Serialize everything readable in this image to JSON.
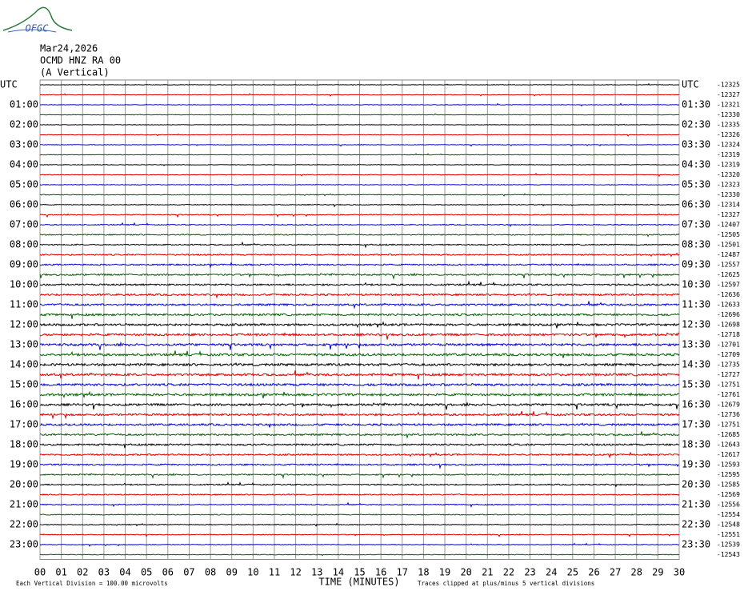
{
  "header": {
    "logo": "OFGC",
    "date": "Mar24,2026",
    "station": "OCMD HNZ RA 00",
    "component": "(A Vertical)"
  },
  "left_labels": [
    "UTC",
    "01:00",
    "02:00",
    "03:00",
    "04:00",
    "05:00",
    "06:00",
    "07:00",
    "08:00",
    "09:00",
    "10:00",
    "11:00",
    "12:00",
    "13:00",
    "14:00",
    "15:00",
    "16:00",
    "17:00",
    "18:00",
    "19:00",
    "20:00",
    "21:00",
    "22:00",
    "23:00"
  ],
  "right_labels": [
    "UTC",
    "01:30",
    "02:30",
    "03:30",
    "04:30",
    "05:30",
    "06:30",
    "07:30",
    "08:30",
    "09:30",
    "10:30",
    "11:30",
    "12:30",
    "13:30",
    "14:30",
    "15:30",
    "16:30",
    "17:30",
    "18:30",
    "19:30",
    "20:30",
    "21:30",
    "22:30",
    "23:30"
  ],
  "offsets": [
    -12325,
    -12327,
    -12321,
    -12330,
    -12335,
    -12326,
    -12324,
    -12319,
    -12319,
    -12320,
    -12323,
    -12330,
    -12314,
    -12327,
    -12407,
    -12505,
    -12501,
    -12487,
    -12557,
    -12625,
    -12597,
    -12636,
    -12633,
    -12696,
    -12698,
    -12718,
    -12701,
    -12709,
    -12735,
    -12727,
    -12751,
    -12761,
    -12679,
    -12736,
    -12751,
    -12685,
    -12643,
    -12617,
    -12593,
    -12595,
    -12585,
    -12569,
    -12556,
    -12554,
    -12548,
    -12551,
    -12539,
    -12543
  ],
  "x_labels": [
    "00",
    "01",
    "02",
    "03",
    "04",
    "05",
    "06",
    "07",
    "08",
    "09",
    "10",
    "11",
    "12",
    "13",
    "14",
    "15",
    "16",
    "17",
    "18",
    "19",
    "20",
    "21",
    "22",
    "23",
    "24",
    "25",
    "26",
    "27",
    "28",
    "29",
    "30"
  ],
  "x_title": "TIME (MINUTES)",
  "footer": {
    "division": "Each Vertical Division =  100.00 microvolts",
    "clipped": "Traces clipped at plus/minus 5 vertical divisions"
  }
}
